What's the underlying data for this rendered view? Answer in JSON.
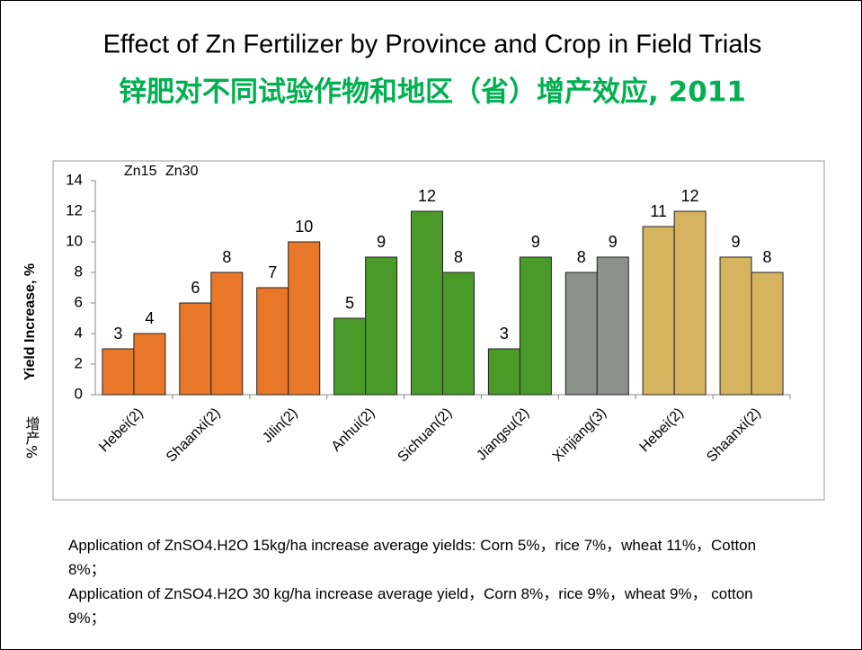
{
  "title": "Effect of Zn Fertilizer by Province and Crop in Field Trials",
  "subtitle": "锌肥对不同试验作物和地区（省）增产效应, 2011",
  "chart_data": {
    "type": "bar",
    "y_label": "Yield Increase, %",
    "y_label_cn": "增产%",
    "categories": [
      "Hebei(2)",
      "Shaanxi(2)",
      "Jilin(2)",
      "Anhui(2)",
      "Sichuan(2)",
      "Jiangsu(2)",
      "Xinjiang(3)",
      "Hebei(2)",
      "Shaanxi(2)"
    ],
    "bar_colors": [
      "#e8772a",
      "#e8772a",
      "#e8772a",
      "#4a9a2a",
      "#4a9a2a",
      "#4a9a2a",
      "#8c918c",
      "#d6b35e",
      "#d6b35e"
    ],
    "series": [
      {
        "name": "Zn15",
        "values": [
          3,
          6,
          7,
          5,
          12,
          3,
          8,
          11,
          9
        ]
      },
      {
        "name": "Zn30",
        "values": [
          4,
          8,
          10,
          9,
          8,
          9,
          9,
          12,
          8
        ]
      }
    ],
    "ylim": [
      0,
      14
    ],
    "yticks": [
      0,
      2,
      4,
      6,
      8,
      10,
      12,
      14
    ]
  },
  "notes": [
    "Application of ZnSO4.H2O 15kg/ha increase average yields: Corn 5%，rice 7%，wheat 11%，Cotton 8%；",
    "Application of ZnSO4.H2O 30 kg/ha increase average yield，Corn 8%，rice 9%，wheat 9%， cotton 9%；"
  ]
}
